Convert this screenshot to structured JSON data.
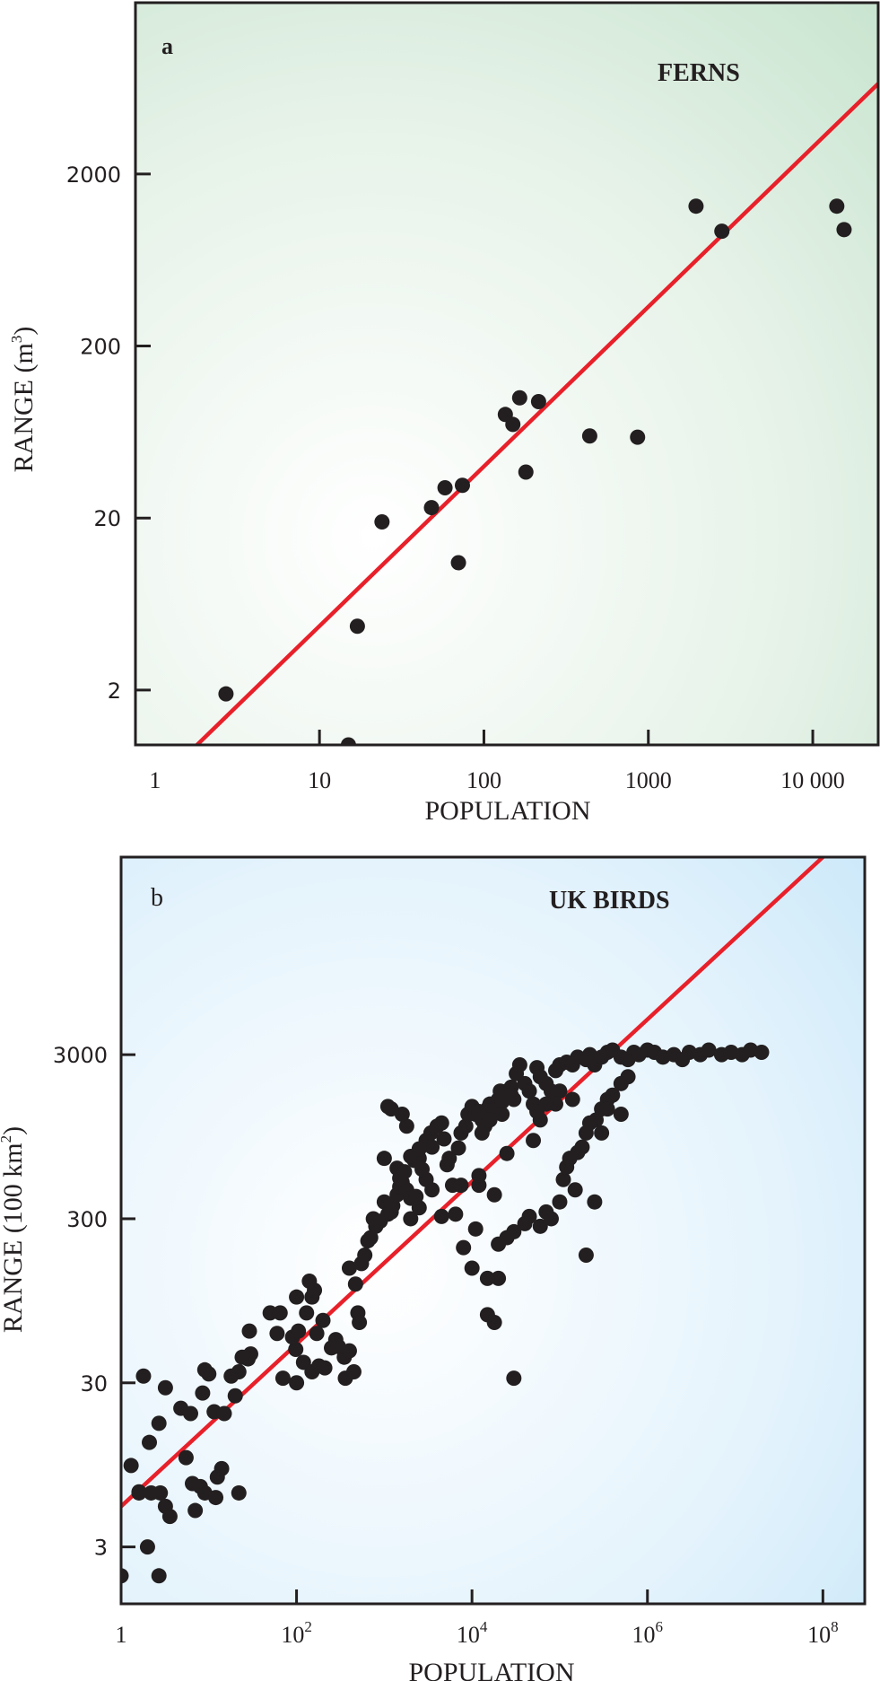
{
  "chart_data": [
    {
      "type": "scatter",
      "panel_label": "a",
      "title": "FERNS",
      "xlabel": "POPULATION",
      "ylabel": "RANGE (m",
      "ylabel_sup": "3",
      "ylabel_close": ")",
      "xscale": "log",
      "yscale": "log",
      "xlim": [
        0.76,
        25000
      ],
      "ylim": [
        0.96,
        19800
      ],
      "xticks": [
        1,
        10,
        100,
        1000,
        10000
      ],
      "xtick_labels": [
        "1",
        "10",
        "100",
        "1000",
        "10 000"
      ],
      "yticks": [
        2,
        20,
        200,
        2000
      ],
      "ytick_labels": [
        "2",
        "20",
        "200",
        "2000"
      ],
      "grid": false,
      "background": {
        "corner": "#c8e4d0",
        "center": "#ffffff"
      },
      "marker_color": "#231f20",
      "fit_line": {
        "color": "#e8202a",
        "points": [
          [
            1.8,
            0.96
          ],
          [
            25000,
            6700
          ]
        ]
      },
      "points": [
        [
          2.7,
          1.9
        ],
        [
          15,
          0.96
        ],
        [
          17,
          4.7
        ],
        [
          24,
          19
        ],
        [
          48,
          23
        ],
        [
          58,
          30
        ],
        [
          74,
          31
        ],
        [
          70,
          11
        ],
        [
          135,
          80
        ],
        [
          150,
          70
        ],
        [
          165,
          100
        ],
        [
          180,
          37
        ],
        [
          215,
          95
        ],
        [
          440,
          60
        ],
        [
          860,
          59
        ],
        [
          1950,
          1300
        ],
        [
          2800,
          930
        ],
        [
          14000,
          1300
        ],
        [
          15500,
          950
        ]
      ]
    },
    {
      "type": "scatter",
      "panel_label": "b",
      "title": "UK BIRDS",
      "xlabel": "POPULATION",
      "ylabel": "RANGE (100 km",
      "ylabel_sup": "2",
      "ylabel_close": ")",
      "xscale": "log",
      "yscale": "log",
      "xlim": [
        1,
        300000000
      ],
      "ylim": [
        1.35,
        48000
      ],
      "xticks": [
        1,
        100,
        10000,
        1000000,
        100000000
      ],
      "xtick_labels": [
        [
          "1",
          ""
        ],
        [
          "10",
          "2"
        ],
        [
          "10",
          "4"
        ],
        [
          "10",
          "6"
        ],
        [
          "10",
          "8"
        ]
      ],
      "yticks": [
        3,
        30,
        300,
        3000
      ],
      "ytick_labels": [
        "3",
        "30",
        "300",
        "3000"
      ],
      "grid": false,
      "background": {
        "corner": "#c6e6f8",
        "center": "#ffffff"
      },
      "marker_color": "#231f20",
      "fit_line": {
        "color": "#e8202a",
        "points": [
          [
            1,
            5.3
          ],
          [
            100000000,
            48000
          ]
        ]
      },
      "points": [
        [
          1,
          2.0
        ],
        [
          2.7,
          2.0
        ],
        [
          2.0,
          3.0
        ],
        [
          1.3,
          9.4
        ],
        [
          1.6,
          6.5
        ],
        [
          2.1,
          13
        ],
        [
          1.8,
          33
        ],
        [
          1.6,
          6.4
        ],
        [
          2.8,
          6.4
        ],
        [
          3.2,
          5.3
        ],
        [
          3.6,
          4.6
        ],
        [
          2.2,
          6.4
        ],
        [
          2.7,
          17
        ],
        [
          5.5,
          10.5
        ],
        [
          3.2,
          28
        ],
        [
          6.5,
          7.3
        ],
        [
          9,
          6.4
        ],
        [
          14,
          9
        ],
        [
          12,
          6
        ],
        [
          12.5,
          8
        ],
        [
          11.5,
          20
        ],
        [
          22,
          6.4
        ],
        [
          20,
          25
        ],
        [
          30,
          45
        ],
        [
          8,
          7
        ],
        [
          7,
          5.0
        ],
        [
          4.8,
          21
        ],
        [
          6.2,
          19.5
        ],
        [
          8.5,
          26
        ],
        [
          10,
          34
        ],
        [
          9,
          36
        ],
        [
          15,
          19.5
        ],
        [
          18,
          33
        ],
        [
          22,
          35
        ],
        [
          28,
          42
        ],
        [
          29,
          62
        ],
        [
          24,
          43
        ],
        [
          50,
          80
        ],
        [
          60,
          60
        ],
        [
          100,
          100
        ],
        [
          65,
          80
        ],
        [
          70,
          32
        ],
        [
          98,
          48
        ],
        [
          150,
          100
        ],
        [
          170,
          60
        ],
        [
          200,
          72
        ],
        [
          160,
          110
        ],
        [
          140,
          125
        ],
        [
          130,
          80
        ],
        [
          100,
          30
        ],
        [
          90,
          57
        ],
        [
          105,
          62
        ],
        [
          120,
          40
        ],
        [
          150,
          35
        ],
        [
          180,
          38
        ],
        [
          210,
          37
        ],
        [
          250,
          49
        ],
        [
          280,
          55
        ],
        [
          300,
          50
        ],
        [
          350,
          43
        ],
        [
          360,
          32
        ],
        [
          400,
          47
        ],
        [
          450,
          35
        ],
        [
          500,
          80
        ],
        [
          520,
          70
        ],
        [
          470,
          120
        ],
        [
          400,
          150
        ],
        [
          550,
          160
        ],
        [
          600,
          180
        ],
        [
          650,
          220
        ],
        [
          700,
          230
        ],
        [
          800,
          270
        ],
        [
          750,
          300
        ],
        [
          900,
          290
        ],
        [
          1000,
          380
        ],
        [
          1100,
          320
        ],
        [
          1200,
          330
        ],
        [
          1250,
          360
        ],
        [
          1400,
          420
        ],
        [
          1500,
          470
        ],
        [
          1600,
          500
        ],
        [
          1800,
          450
        ],
        [
          2000,
          400
        ],
        [
          2300,
          410
        ],
        [
          2000,
          300
        ],
        [
          2500,
          350
        ],
        [
          1400,
          610
        ],
        [
          1500,
          530
        ],
        [
          1700,
          580
        ],
        [
          2500,
          700
        ],
        [
          2200,
          680
        ],
        [
          3000,
          900
        ],
        [
          3400,
          1000
        ],
        [
          4000,
          1100
        ],
        [
          4500,
          1150
        ],
        [
          4800,
          920
        ],
        [
          5200,
          640
        ],
        [
          5500,
          700
        ],
        [
          6000,
          480
        ],
        [
          3500,
          820
        ],
        [
          7000,
          810
        ],
        [
          7500,
          1000
        ],
        [
          8500,
          1100
        ],
        [
          9000,
          1300
        ],
        [
          10000,
          1450
        ],
        [
          11000,
          1300
        ],
        [
          12000,
          1350
        ],
        [
          13000,
          1200
        ],
        [
          14000,
          1100
        ],
        [
          15000,
          1400
        ],
        [
          16000,
          1500
        ],
        [
          18000,
          1380
        ],
        [
          20000,
          1600
        ],
        [
          21000,
          1800
        ],
        [
          22000,
          1550
        ],
        [
          25000,
          1800
        ],
        [
          28000,
          1900
        ],
        [
          30000,
          1600
        ],
        [
          32000,
          2300
        ],
        [
          35000,
          2600
        ],
        [
          40000,
          2000
        ],
        [
          45000,
          1800
        ],
        [
          50000,
          1500
        ],
        [
          55000,
          2500
        ],
        [
          60000,
          2200
        ],
        [
          70000,
          2000
        ],
        [
          80000,
          1800
        ],
        [
          90000,
          2400
        ],
        [
          100000,
          2600
        ],
        [
          120000,
          2700
        ],
        [
          140000,
          2600
        ],
        [
          160000,
          2900
        ],
        [
          200000,
          2800
        ],
        [
          220000,
          3000
        ],
        [
          250000,
          2600
        ],
        [
          300000,
          2900
        ],
        [
          350000,
          3100
        ],
        [
          400000,
          3200
        ],
        [
          500000,
          2900
        ],
        [
          600000,
          2800
        ],
        [
          700000,
          3100
        ],
        [
          800000,
          3000
        ],
        [
          1000000,
          3200
        ],
        [
          1200000,
          3100
        ],
        [
          1500000,
          2900
        ],
        [
          2000000,
          3000
        ],
        [
          2500000,
          2800
        ],
        [
          3000000,
          3100
        ],
        [
          4000000,
          3000
        ],
        [
          5000000,
          3200
        ],
        [
          7000000,
          3000
        ],
        [
          9000000,
          3100
        ],
        [
          12000000,
          3000
        ],
        [
          15000000,
          3200
        ],
        [
          20000000,
          3100
        ],
        [
          8000,
          200
        ],
        [
          10000,
          150
        ],
        [
          12000,
          480
        ],
        [
          18000,
          420
        ],
        [
          20000,
          210
        ],
        [
          25000,
          230
        ],
        [
          30000,
          250
        ],
        [
          40000,
          280
        ],
        [
          45000,
          310
        ],
        [
          60000,
          270
        ],
        [
          70000,
          330
        ],
        [
          80000,
          300
        ],
        [
          100000,
          380
        ],
        [
          110000,
          520
        ],
        [
          120000,
          620
        ],
        [
          130000,
          700
        ],
        [
          160000,
          760
        ],
        [
          180000,
          820
        ],
        [
          200000,
          1000
        ],
        [
          220000,
          1150
        ],
        [
          260000,
          1200
        ],
        [
          300000,
          1400
        ],
        [
          350000,
          1600
        ],
        [
          400000,
          1700
        ],
        [
          500000,
          2000
        ],
        [
          600000,
          2200
        ],
        [
          300000,
          1000
        ],
        [
          350000,
          1400
        ],
        [
          500000,
          1300
        ],
        [
          150000,
          450
        ],
        [
          200000,
          180
        ],
        [
          250000,
          380
        ],
        [
          140000,
          1600
        ],
        [
          100000,
          1800
        ],
        [
          90000,
          1500
        ],
        [
          50000,
          900
        ],
        [
          60000,
          1200
        ],
        [
          55000,
          1350
        ],
        [
          70000,
          1500
        ],
        [
          28000,
          1700
        ],
        [
          22000,
          1300
        ],
        [
          16000,
          1200
        ],
        [
          13000,
          1000
        ],
        [
          12000,
          550
        ],
        [
          7500,
          480
        ],
        [
          11000,
          260
        ],
        [
          6500,
          320
        ],
        [
          4500,
          310
        ],
        [
          3000,
          520
        ],
        [
          3500,
          450
        ],
        [
          2700,
          600
        ],
        [
          2000,
          720
        ],
        [
          2500,
          800
        ],
        [
          1800,
          1100
        ],
        [
          1600,
          1300
        ],
        [
          1200,
          1400
        ],
        [
          1000,
          700
        ],
        [
          1100,
          1450
        ],
        [
          25000,
          750
        ],
        [
          20000,
          130
        ],
        [
          15000,
          130
        ],
        [
          18000,
          70
        ],
        [
          30000,
          32
        ],
        [
          15000,
          78
        ]
      ]
    }
  ]
}
